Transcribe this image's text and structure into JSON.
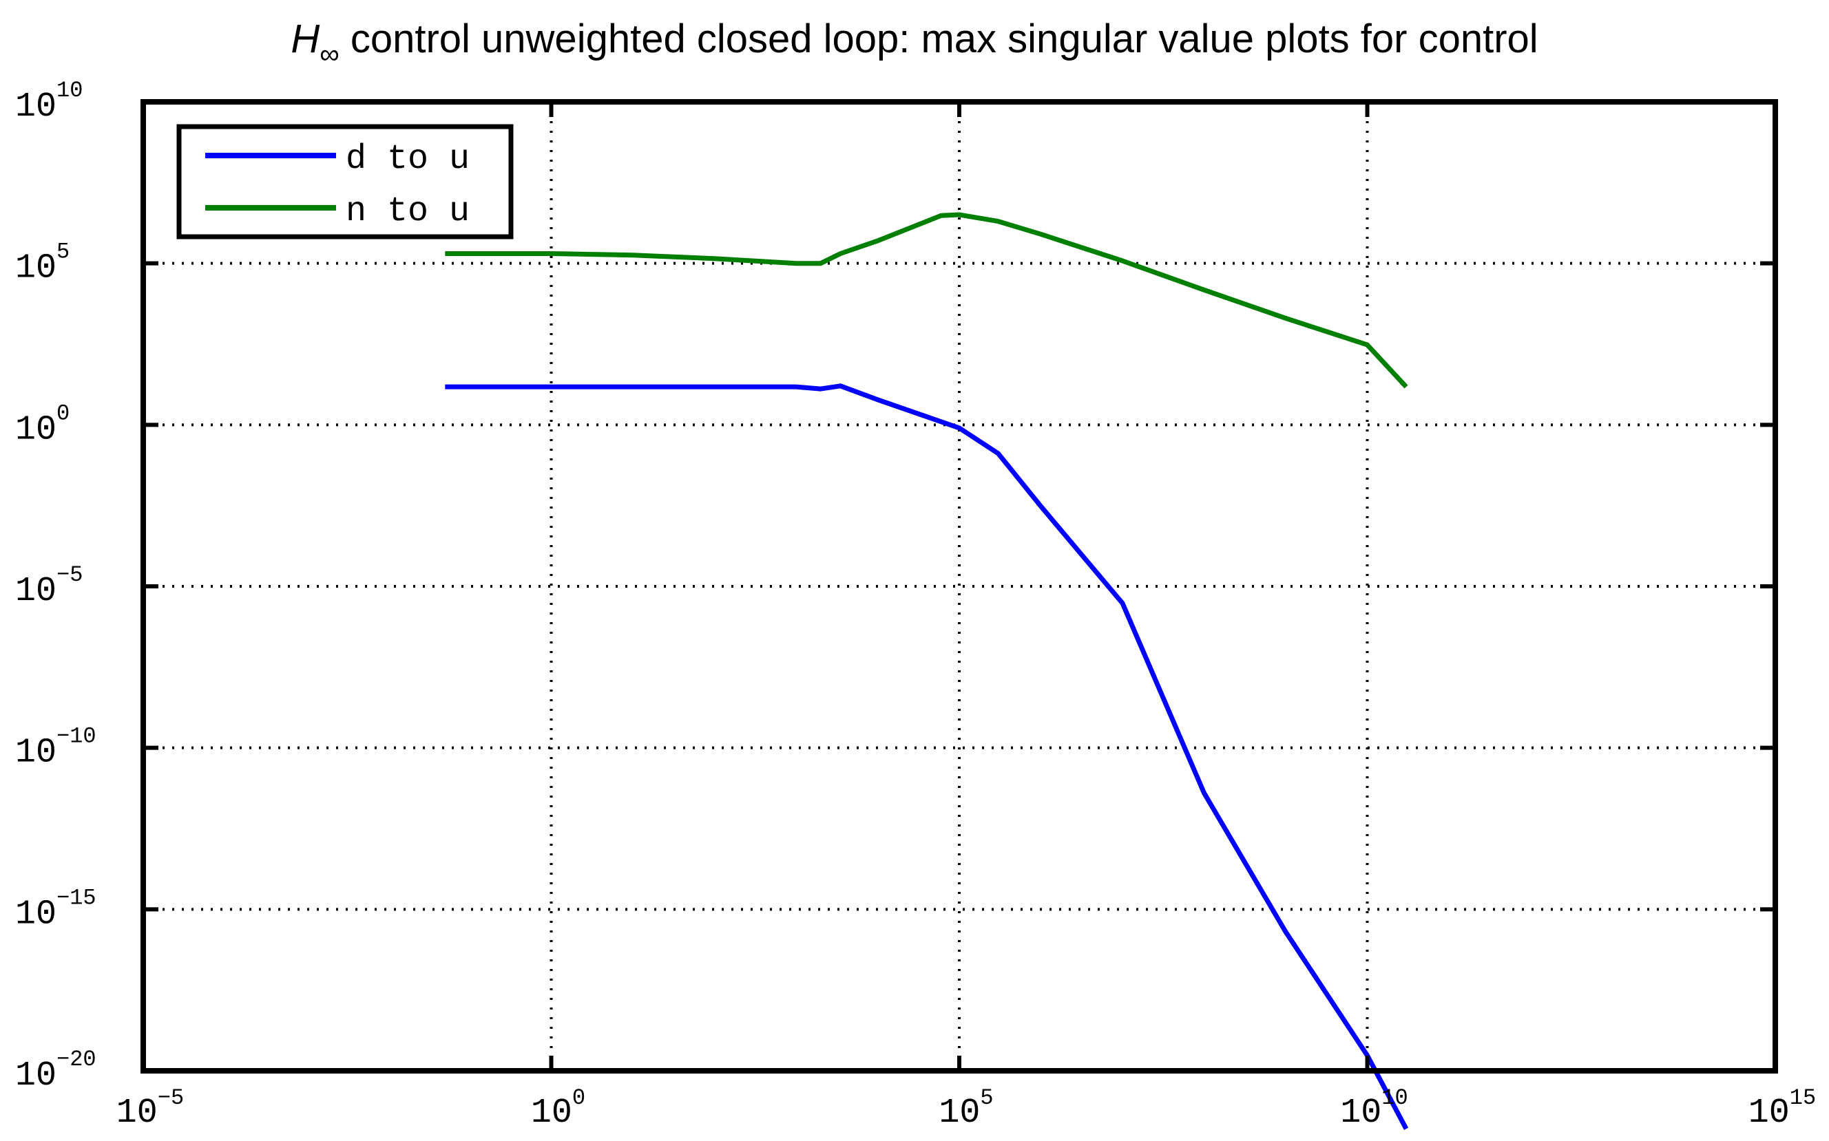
{
  "chart_data": {
    "type": "line",
    "title": {
      "symbol": "H",
      "subscript": "∞",
      "text": " control unweighted closed loop: max singular value plots for control"
    },
    "xlabel": "",
    "ylabel": "",
    "x_scale": "log",
    "y_scale": "log",
    "xlim": [
      1e-05,
      1000000000000000.0
    ],
    "ylim": [
      1e-20,
      10000000000.0
    ],
    "x_ticks": [
      {
        "base": "10",
        "exp": "−5"
      },
      {
        "base": "10",
        "exp": "0"
      },
      {
        "base": "10",
        "exp": "5"
      },
      {
        "base": "10",
        "exp": "10"
      },
      {
        "base": "10",
        "exp": "15"
      }
    ],
    "y_ticks": [
      {
        "base": "10",
        "exp": "10"
      },
      {
        "base": "10",
        "exp": "5"
      },
      {
        "base": "10",
        "exp": "0"
      },
      {
        "base": "10",
        "exp": "−5"
      },
      {
        "base": "10",
        "exp": "−10"
      },
      {
        "base": "10",
        "exp": "−15"
      },
      {
        "base": "10",
        "exp": "−20"
      }
    ],
    "grid": true,
    "legend_position": "top-left",
    "series": [
      {
        "name": "d to u",
        "color": "#0000ff",
        "x": [
          0.05,
          1,
          10,
          100,
          1000,
          2000,
          3500,
          10000,
          100000,
          300000,
          1000000,
          10000000,
          100000000,
          1000000000,
          10000000000,
          30000000000
        ],
        "y": [
          15,
          15,
          15,
          15,
          15,
          13,
          16,
          6,
          0.8,
          0.13,
          0.003,
          3e-06,
          4e-12,
          2e-16,
          3e-20,
          1.6e-22
        ]
      },
      {
        "name": "n to u",
        "color": "#007f00",
        "x": [
          0.05,
          1,
          10,
          100,
          1000,
          2000,
          3500,
          10000,
          60000,
          100000,
          300000,
          1000000,
          10000000,
          100000000,
          1000000000,
          10000000000,
          30000000000
        ],
        "y": [
          200000,
          200000,
          180000,
          140000,
          100000,
          100000,
          200000,
          500000,
          3000000,
          3200000,
          2000000,
          800000,
          120000,
          15000,
          2000,
          300,
          15
        ]
      }
    ]
  }
}
